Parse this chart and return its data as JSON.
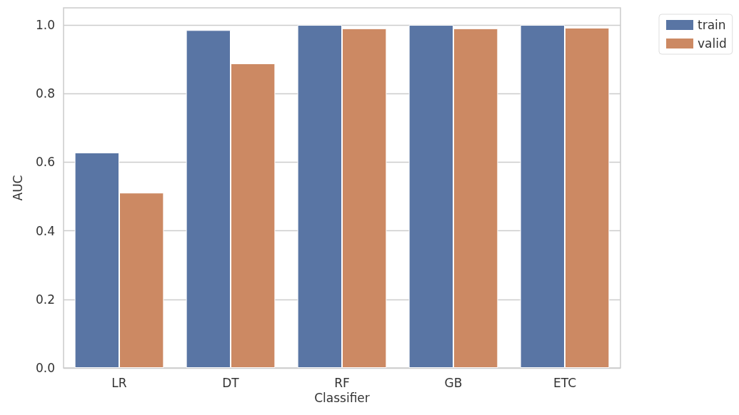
{
  "chart_data": {
    "type": "bar",
    "xlabel": "Classifier",
    "ylabel": "AUC",
    "categories": [
      "LR",
      "DT",
      "RF",
      "GB",
      "ETC"
    ],
    "series": [
      {
        "name": "train",
        "color": "#5975a4",
        "values": [
          0.628,
          0.985,
          1.0,
          1.0,
          1.0
        ]
      },
      {
        "name": "valid",
        "color": "#cc8963",
        "values": [
          0.511,
          0.888,
          0.99,
          0.99,
          0.992
        ]
      }
    ],
    "ylim": [
      0,
      1.05
    ],
    "yticks": [
      {
        "value": 0,
        "label": "0.0"
      },
      0.2,
      0.4,
      0.6,
      0.8,
      {
        "value": 1,
        "label": "1.0"
      }
    ],
    "grid": "y",
    "legend": "top right"
  }
}
